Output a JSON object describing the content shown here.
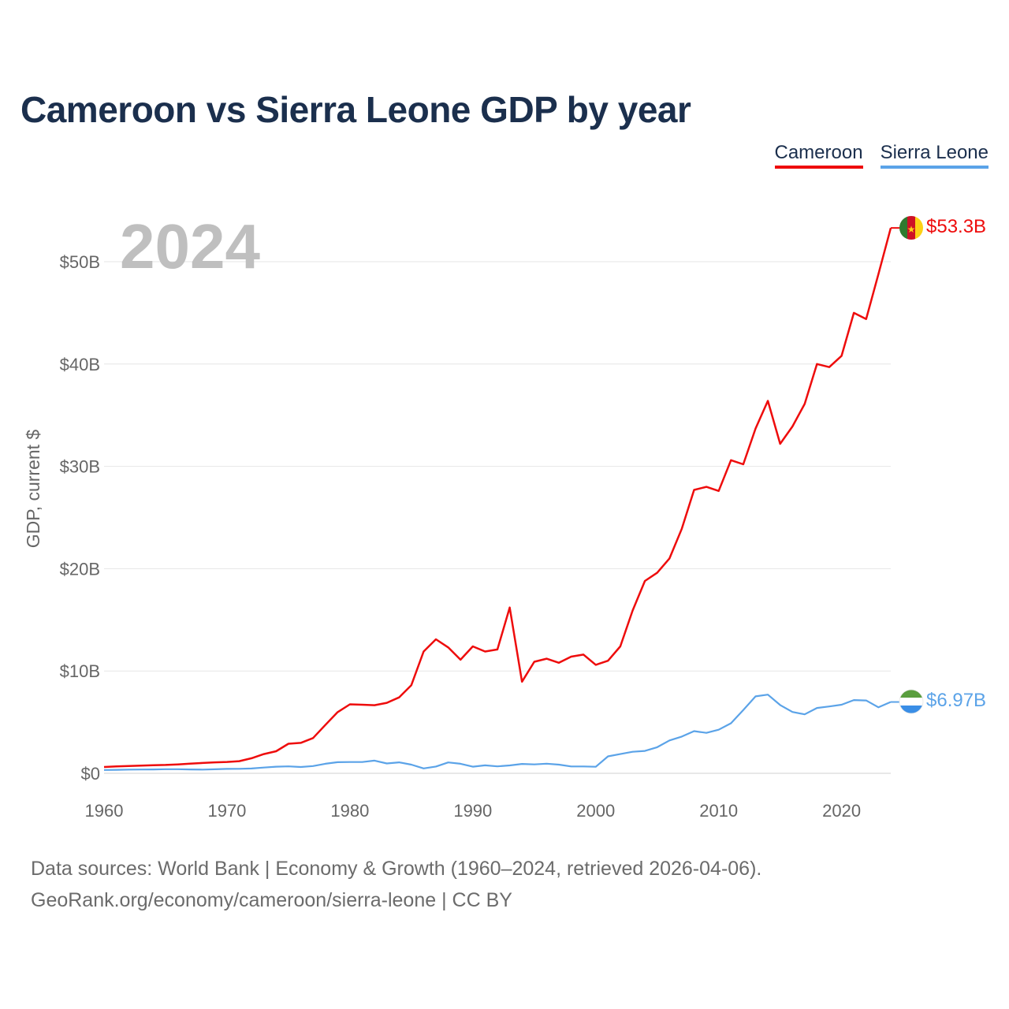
{
  "title": "Cameroon vs Sierra Leone GDP by year",
  "legend": {
    "cameroon": "Cameroon",
    "sierra_leone": "Sierra Leone"
  },
  "colors": {
    "cameroon": "#ee0c0c",
    "sierra_leone": "#5ba3e8",
    "title": "#1b2f4d"
  },
  "source_line1": "Data sources: World Bank | Economy & Growth (1960–2024, retrieved 2026-04-06).",
  "source_line2": "GeoRank.org/economy/cameroon/sierra-leone | CC BY",
  "flags": {
    "cameroon": "cameroon-flag-icon",
    "sierra_leone": "sierra-leone-flag-icon"
  },
  "chart_data": {
    "type": "line",
    "title": "Cameroon vs Sierra Leone GDP by year",
    "xlabel": "",
    "ylabel": "GDP, current $",
    "year_label": "2024",
    "xlim": [
      1960,
      2024
    ],
    "ylim": [
      0,
      55
    ],
    "x_ticks": [
      1960,
      1970,
      1980,
      1990,
      2000,
      2010,
      2020
    ],
    "y_ticks": [
      0,
      10,
      20,
      30,
      40,
      50
    ],
    "y_tick_labels": [
      "$0",
      "$10B",
      "$20B",
      "$30B",
      "$40B",
      "$50B"
    ],
    "grid": true,
    "legend_position": "top-right",
    "x": [
      1960,
      1961,
      1962,
      1963,
      1964,
      1965,
      1966,
      1967,
      1968,
      1969,
      1970,
      1971,
      1972,
      1973,
      1974,
      1975,
      1976,
      1977,
      1978,
      1979,
      1980,
      1981,
      1982,
      1983,
      1984,
      1985,
      1986,
      1987,
      1988,
      1989,
      1990,
      1991,
      1992,
      1993,
      1994,
      1995,
      1996,
      1997,
      1998,
      1999,
      2000,
      2001,
      2002,
      2003,
      2004,
      2005,
      2006,
      2007,
      2008,
      2009,
      2010,
      2011,
      2012,
      2013,
      2014,
      2015,
      2016,
      2017,
      2018,
      2019,
      2020,
      2021,
      2022,
      2023,
      2024
    ],
    "series": [
      {
        "name": "Cameroon",
        "end_label": "$53.3B",
        "values": [
          0.62,
          0.67,
          0.71,
          0.75,
          0.79,
          0.82,
          0.87,
          0.94,
          1.01,
          1.07,
          1.11,
          1.19,
          1.47,
          1.88,
          2.16,
          2.89,
          2.97,
          3.44,
          4.72,
          5.98,
          6.74,
          6.7,
          6.66,
          6.89,
          7.42,
          8.61,
          11.9,
          13.1,
          12.3,
          11.1,
          12.4,
          11.9,
          12.1,
          16.2,
          8.95,
          10.9,
          11.2,
          10.8,
          11.4,
          11.6,
          10.6,
          11.0,
          12.4,
          15.9,
          18.8,
          19.6,
          21.0,
          23.9,
          27.7,
          28.0,
          27.6,
          30.6,
          30.2,
          33.7,
          36.4,
          32.2,
          33.9,
          36.1,
          40.0,
          39.7,
          40.8,
          45.0,
          44.4,
          48.8,
          53.3
        ]
      },
      {
        "name": "Sierra Leone",
        "end_label": "$6.97B",
        "values": [
          0.32,
          0.34,
          0.36,
          0.37,
          0.38,
          0.4,
          0.4,
          0.38,
          0.36,
          0.39,
          0.43,
          0.44,
          0.47,
          0.56,
          0.65,
          0.68,
          0.62,
          0.71,
          0.93,
          1.09,
          1.1,
          1.1,
          1.24,
          0.96,
          1.07,
          0.85,
          0.48,
          0.66,
          1.06,
          0.93,
          0.65,
          0.78,
          0.68,
          0.77,
          0.92,
          0.87,
          0.94,
          0.85,
          0.67,
          0.67,
          0.64,
          1.66,
          1.88,
          2.1,
          2.19,
          2.55,
          3.21,
          3.59,
          4.12,
          3.95,
          4.26,
          4.89,
          6.18,
          7.52,
          7.69,
          6.67,
          5.99,
          5.76,
          6.39,
          6.53,
          6.7,
          7.16,
          7.12,
          6.45,
          6.97
        ]
      }
    ]
  }
}
